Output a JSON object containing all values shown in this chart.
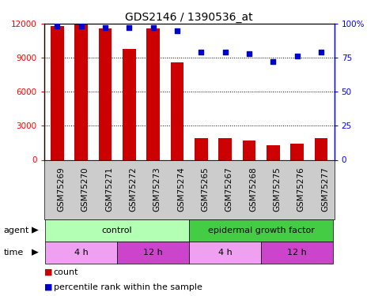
{
  "title": "GDS2146 / 1390536_at",
  "samples": [
    "GSM75269",
    "GSM75270",
    "GSM75271",
    "GSM75272",
    "GSM75273",
    "GSM75274",
    "GSM75265",
    "GSM75267",
    "GSM75268",
    "GSM75275",
    "GSM75276",
    "GSM75277"
  ],
  "counts": [
    11800,
    11900,
    11600,
    9800,
    11600,
    8600,
    1900,
    1900,
    1700,
    1300,
    1400,
    1900
  ],
  "percentiles": [
    98,
    98,
    97,
    97,
    97,
    95,
    79,
    79,
    78,
    72,
    76,
    79
  ],
  "bar_color": "#cc0000",
  "dot_color": "#0000cc",
  "ylim_left": [
    0,
    12000
  ],
  "ylim_right": [
    0,
    100
  ],
  "yticks_left": [
    0,
    3000,
    6000,
    9000,
    12000
  ],
  "yticks_right": [
    0,
    25,
    50,
    75,
    100
  ],
  "ytick_labels_right": [
    "0",
    "25",
    "50",
    "75",
    "100%"
  ],
  "agent_groups": [
    {
      "label": "control",
      "start": 0,
      "end": 6,
      "color": "#b3ffb3"
    },
    {
      "label": "epidermal growth factor",
      "start": 6,
      "end": 12,
      "color": "#44cc44"
    }
  ],
  "time_groups": [
    {
      "label": "4 h",
      "start": 0,
      "end": 3,
      "color": "#f0a0f0"
    },
    {
      "label": "12 h",
      "start": 3,
      "end": 6,
      "color": "#cc44cc"
    },
    {
      "label": "4 h",
      "start": 6,
      "end": 9,
      "color": "#f0a0f0"
    },
    {
      "label": "12 h",
      "start": 9,
      "end": 12,
      "color": "#cc44cc"
    }
  ],
  "label_fontsize": 8,
  "title_fontsize": 10,
  "tick_fontsize": 7.5,
  "bar_width": 0.55,
  "background_color": "#ffffff",
  "plot_bg_color": "#ffffff",
  "sample_area_color": "#cccccc",
  "xlim": [
    -0.55,
    11.55
  ]
}
